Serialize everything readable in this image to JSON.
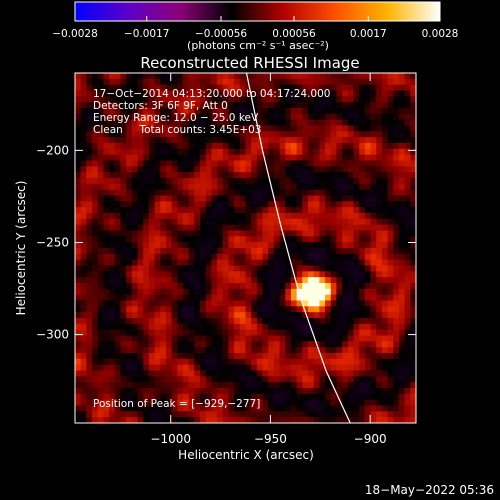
{
  "chart_data": {
    "type": "heatmap",
    "title": "Reconstructed RHESSI Image",
    "xlabel": "Heliocentric X (arcsec)",
    "ylabel": "Heliocentric Y (arcsec)",
    "xlim": [
      -1048,
      -877
    ],
    "ylim": [
      -348,
      -158
    ],
    "x_ticks": [
      {
        "value": -1000,
        "label": "−1000"
      },
      {
        "value": -950,
        "label": "−950"
      },
      {
        "value": -900,
        "label": "−900"
      }
    ],
    "y_ticks": [
      {
        "value": -200,
        "label": "−200"
      },
      {
        "value": -250,
        "label": "−250"
      },
      {
        "value": -300,
        "label": "−300"
      }
    ],
    "colorbar": {
      "range": [
        -0.0028,
        0.0028
      ],
      "ticks": [
        {
          "value": -0.0028,
          "label": "−0.0028"
        },
        {
          "value": -0.0017,
          "label": "−0.0017"
        },
        {
          "value": -0.00056,
          "label": "−0.00056"
        },
        {
          "value": 0.00056,
          "label": "0.00056"
        },
        {
          "value": 0.0017,
          "label": "0.0017"
        },
        {
          "value": 0.0028,
          "label": "0.0028"
        }
      ],
      "unit_label": "(photons cm⁻² s⁻¹ asec⁻²)",
      "colors": [
        "#0000ff",
        "#5a00c8",
        "#8c0078",
        "#000000",
        "#b40000",
        "#ff5000",
        "#ffb400",
        "#ffffff"
      ]
    },
    "annotations": [
      "17−Oct−2014 04:13:20.000 to 04:17:24.000",
      "Detectors: 3F 6F 9F, Att 0",
      "Energy Range: 12.0 − 25.0 keV",
      "Clean     Total counts: 3.45E+03"
    ],
    "peak": {
      "x": -929,
      "y": -277
    },
    "peak_label": "Position of Peak = [−929,−277]",
    "limb": [
      [
        -962,
        -158
      ],
      [
        -954,
        -200
      ],
      [
        -945,
        -240
      ],
      [
        -935,
        -280
      ],
      [
        -922,
        -320
      ],
      [
        -910,
        -348
      ]
    ]
  },
  "footer": {
    "date": "18−May−2022 05:36"
  },
  "colors": {
    "background": "#000000",
    "foreground": "#ffffff"
  }
}
